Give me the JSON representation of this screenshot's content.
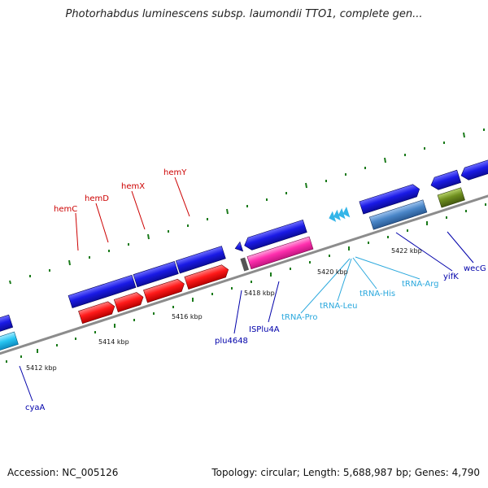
{
  "title": "Photorhabdus luminescens subsp. laumondii TTO1, complete gen...",
  "footer": {
    "accession": "Accession: NC_005126",
    "topology": "Topology: circular; Length: 5,688,987 bp; Genes: 4,790"
  },
  "ticks": [
    "5412 kbp",
    "5414 kbp",
    "5416 kbp",
    "5418 kbp",
    "5420 kbp",
    "5422 kbp"
  ],
  "labels": {
    "hemC": "hemC",
    "hemD": "hemD",
    "hemX": "hemX",
    "hemY": "hemY",
    "cyaA": "cyaA",
    "plu4648": "plu4648",
    "ISPlu4A": "ISPlu4A",
    "tRNA_Pro": "tRNA-Pro",
    "tRNA_Leu": "tRNA-Leu",
    "tRNA_His": "tRNA-His",
    "tRNA_Arg": "tRNA-Arg",
    "yifK": "yifK",
    "wecG": "wecG"
  },
  "colors": {
    "cds": "#1a1ae0",
    "gene": "#ff1a1a",
    "trna": "#33b5e8",
    "mobile": "#ff33aa",
    "rrna_like": "#4a86c8",
    "olive": "#6f8f1f",
    "backbone": "#8c8c8c",
    "tick": "#1a7a1a",
    "label_red": "#cc0000",
    "label_blue": "#0000aa",
    "label_cyan": "#2aa8dd"
  }
}
